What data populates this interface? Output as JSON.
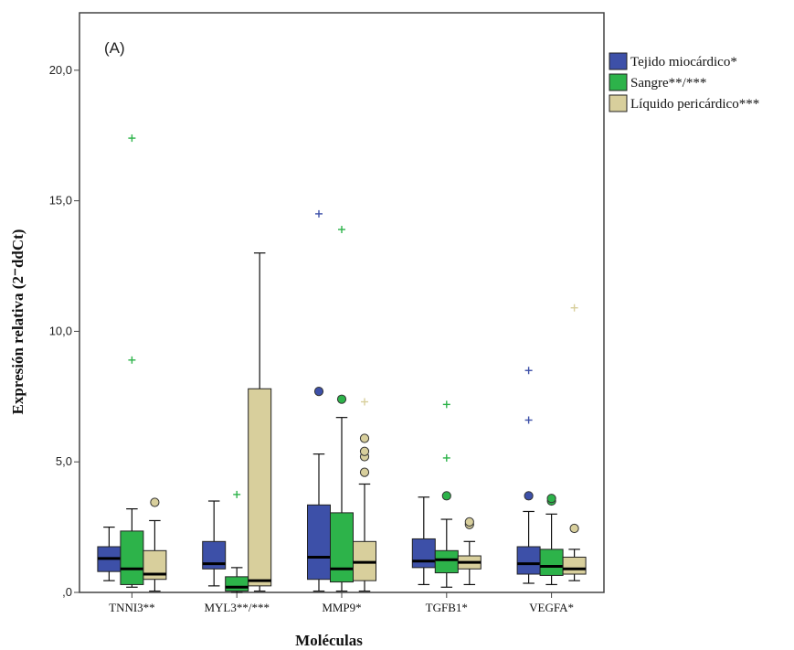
{
  "chart_data": {
    "type": "boxplot",
    "panel_label": "(A)",
    "xlabel": "Moléculas",
    "ylabel": "Expresión relativa (2⁻ddCt)",
    "ylim": [
      0,
      22.2
    ],
    "yticks": [
      0,
      5,
      10,
      15,
      20
    ],
    "ytick_labels": [
      ",0",
      "5,0",
      "10,0",
      "15,0",
      "20,0"
    ],
    "grid": false,
    "legend_position": "right",
    "categories": [
      "TNNI3**",
      "MYL3**/***",
      "MMP9*",
      "TGFB1*",
      "VEGFA*"
    ],
    "series": [
      {
        "name": "Tejido miocárdico*",
        "color": "#3d50a8",
        "boxes": [
          {
            "whisker_low": 0.45,
            "q1": 0.8,
            "median": 1.3,
            "q3": 1.75,
            "whisker_high": 2.5,
            "outliers": [],
            "extremes": []
          },
          {
            "whisker_low": 0.25,
            "q1": 0.9,
            "median": 1.1,
            "q3": 1.95,
            "whisker_high": 3.5,
            "outliers": [],
            "extremes": []
          },
          {
            "whisker_low": 0.05,
            "q1": 0.5,
            "median": 1.35,
            "q3": 3.35,
            "whisker_high": 5.3,
            "outliers": [
              7.7
            ],
            "extremes": [
              14.5
            ]
          },
          {
            "whisker_low": 0.3,
            "q1": 0.95,
            "median": 1.2,
            "q3": 2.05,
            "whisker_high": 3.65,
            "outliers": [],
            "extremes": []
          },
          {
            "whisker_low": 0.35,
            "q1": 0.7,
            "median": 1.1,
            "q3": 1.75,
            "whisker_high": 3.1,
            "outliers": [
              3.7
            ],
            "extremes": [
              6.6,
              8.5
            ]
          }
        ]
      },
      {
        "name": "Sangre**/***",
        "color": "#2db34a",
        "boxes": [
          {
            "whisker_low": 0.2,
            "q1": 0.3,
            "median": 0.9,
            "q3": 2.35,
            "whisker_high": 3.2,
            "outliers": [],
            "extremes": [
              8.9,
              17.4
            ]
          },
          {
            "whisker_low": 0.0,
            "q1": 0.05,
            "median": 0.2,
            "q3": 0.6,
            "whisker_high": 0.95,
            "outliers": [],
            "extremes": [
              3.75
            ]
          },
          {
            "whisker_low": 0.05,
            "q1": 0.4,
            "median": 0.9,
            "q3": 3.05,
            "whisker_high": 6.7,
            "outliers": [
              7.4
            ],
            "extremes": [
              13.9
            ]
          },
          {
            "whisker_low": 0.2,
            "q1": 0.75,
            "median": 1.25,
            "q3": 1.6,
            "whisker_high": 2.8,
            "outliers": [
              3.7
            ],
            "extremes": [
              5.15,
              7.2
            ]
          },
          {
            "whisker_low": 0.3,
            "q1": 0.65,
            "median": 1.0,
            "q3": 1.65,
            "whisker_high": 3.0,
            "outliers": [
              3.5,
              3.6
            ],
            "extremes": []
          }
        ]
      },
      {
        "name": "Líquido pericárdico***",
        "color": "#d8cf9c",
        "boxes": [
          {
            "whisker_low": 0.05,
            "q1": 0.5,
            "median": 0.7,
            "q3": 1.6,
            "whisker_high": 2.75,
            "outliers": [
              3.45
            ],
            "extremes": []
          },
          {
            "whisker_low": 0.05,
            "q1": 0.25,
            "median": 0.45,
            "q3": 7.8,
            "whisker_high": 13.0,
            "outliers": [],
            "extremes": []
          },
          {
            "whisker_low": 0.05,
            "q1": 0.45,
            "median": 1.15,
            "q3": 1.95,
            "whisker_high": 4.15,
            "outliers": [
              4.6,
              5.2,
              5.4,
              5.9
            ],
            "extremes": [
              7.3
            ]
          },
          {
            "whisker_low": 0.3,
            "q1": 0.9,
            "median": 1.15,
            "q3": 1.4,
            "whisker_high": 1.95,
            "outliers": [
              2.6,
              2.7
            ],
            "extremes": []
          },
          {
            "whisker_low": 0.45,
            "q1": 0.7,
            "median": 0.9,
            "q3": 1.35,
            "whisker_high": 1.65,
            "outliers": [
              2.45
            ],
            "extremes": [
              10.9
            ]
          }
        ]
      }
    ]
  }
}
